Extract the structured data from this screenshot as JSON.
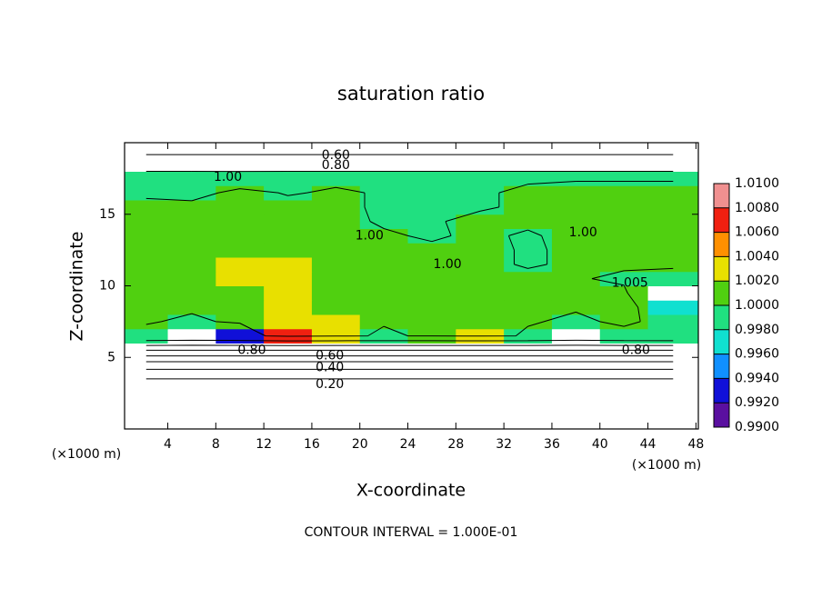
{
  "chart_data": {
    "type": "contourf",
    "title": "saturation ratio",
    "xlabel": "X-coordinate",
    "ylabel": "Z-coordinate",
    "xunit": "(×1000 m)",
    "yunit": "(×1000 m)",
    "footnote": "CONTOUR INTERVAL = 1.000E-01",
    "contour_interval": 0.1,
    "xlim": [
      0.4,
      48.2
    ],
    "ylim": [
      0,
      20
    ],
    "xticks": [
      4,
      8,
      12,
      16,
      20,
      24,
      28,
      32,
      36,
      40,
      44,
      48
    ],
    "yticks": [
      5,
      10,
      15
    ],
    "x_edges": [
      0.4,
      4,
      8,
      12,
      16,
      20,
      24,
      28,
      32,
      36,
      40,
      44,
      48.2
    ],
    "y_edges": [
      0,
      1,
      2,
      3,
      4,
      5,
      6,
      7,
      8,
      9,
      10,
      11,
      12,
      13,
      14,
      15,
      16,
      17,
      18,
      19,
      20
    ],
    "z": [
      [
        0.1,
        0.1,
        0.1,
        0.1,
        0.1,
        0.1,
        0.1,
        0.1,
        0.1,
        0.1,
        0.1,
        0.1
      ],
      [
        0.15,
        0.15,
        0.15,
        0.15,
        0.15,
        0.15,
        0.15,
        0.15,
        0.15,
        0.15,
        0.15,
        0.15
      ],
      [
        0.2,
        0.2,
        0.2,
        0.2,
        0.2,
        0.2,
        0.2,
        0.2,
        0.2,
        0.2,
        0.2,
        0.2
      ],
      [
        0.3,
        0.3,
        0.3,
        0.3,
        0.3,
        0.3,
        0.3,
        0.3,
        0.3,
        0.3,
        0.3,
        0.3
      ],
      [
        0.45,
        0.45,
        0.45,
        0.45,
        0.45,
        0.45,
        0.45,
        0.45,
        0.45,
        0.45,
        0.45,
        0.45
      ],
      [
        0.7,
        0.7,
        0.7,
        0.7,
        0.7,
        0.7,
        0.7,
        0.7,
        0.7,
        0.7,
        0.7,
        0.7
      ],
      [
        0.998,
        0.985,
        0.992,
        1.007,
        1.002,
        0.999,
        1.001,
        1.003,
        0.999,
        0.985,
        0.998,
        0.999
      ],
      [
        1.0005,
        0.999,
        1.001,
        1.003,
        1.002,
        1.0005,
        1.001,
        1.0015,
        1.0005,
        0.999,
        1.001,
        0.998
      ],
      [
        1.0008,
        1.0008,
        1.0015,
        1.002,
        1.0015,
        1.0005,
        1.0008,
        1.001,
        1.0008,
        1.0005,
        1.0012,
        0.997
      ],
      [
        1.0008,
        1.001,
        1.0018,
        1.0025,
        1.0018,
        1.0005,
        1.0005,
        1.0008,
        1.0005,
        1.0005,
        1.0012,
        0.985
      ],
      [
        1.0008,
        1.001,
        1.002,
        1.0025,
        1.0015,
        1.0003,
        1.0005,
        1.0008,
        1.0005,
        1.0005,
        0.999,
        0.998
      ],
      [
        1.0008,
        1.001,
        1.002,
        1.0022,
        1.0012,
        1.0003,
        1.0003,
        1.0005,
        0.9998,
        1.0003,
        1.0008,
        1.0008
      ],
      [
        1.0008,
        1.001,
        1.0018,
        1.0018,
        1.001,
        1.0002,
        1.0003,
        1.0005,
        0.9998,
        1.0003,
        1.0008,
        1.0008
      ],
      [
        1.0008,
        1.0008,
        1.0015,
        1.0015,
        1.0008,
        1.0002,
        0.9998,
        1.0003,
        0.9998,
        1.0005,
        1.0008,
        1.0008
      ],
      [
        1.0005,
        1.0008,
        1.0012,
        1.001,
        1.0005,
        0.9998,
        0.9998,
        1.0005,
        1.0003,
        1.0008,
        1.0008,
        1.0008
      ],
      [
        1.0003,
        1.0008,
        1.001,
        1.0008,
        1.0003,
        0.9998,
        0.9998,
        0.9998,
        1.0003,
        1.0008,
        1.0008,
        1.0008
      ],
      [
        0.9998,
        0.999,
        1.0008,
        0.9998,
        1.0003,
        0.9998,
        0.9998,
        0.9998,
        1.0003,
        1.0008,
        1.0008,
        1.0008
      ],
      [
        0.9995,
        0.999,
        0.998,
        0.9998,
        0.9995,
        0.9998,
        0.9998,
        0.9998,
        0.9998,
        0.9998,
        0.9998,
        0.9998
      ],
      [
        0.8,
        0.8,
        0.8,
        0.8,
        0.8,
        0.8,
        0.8,
        0.8,
        0.8,
        0.8,
        0.8,
        0.8
      ],
      [
        0.65,
        0.65,
        0.65,
        0.65,
        0.65,
        0.65,
        0.65,
        0.65,
        0.65,
        0.65,
        0.65,
        0.65
      ]
    ],
    "contour_labels": [
      {
        "text": "0.60",
        "x": 18,
        "y": 19.1
      },
      {
        "text": "0.80",
        "x": 18,
        "y": 18.4
      },
      {
        "text": "1.00",
        "x": 9,
        "y": 17.6
      },
      {
        "text": "1.00",
        "x": 20.8,
        "y": 13.5
      },
      {
        "text": "1.00",
        "x": 27.3,
        "y": 11.5
      },
      {
        "text": "1.00",
        "x": 38.6,
        "y": 13.7
      },
      {
        "text": "1.005",
        "x": 42.5,
        "y": 10.2
      },
      {
        "text": "0.80",
        "x": 11,
        "y": 5.5
      },
      {
        "text": "0.80",
        "x": 43,
        "y": 5.5
      },
      {
        "text": "0.60",
        "x": 17.5,
        "y": 5.1
      },
      {
        "text": "0.40",
        "x": 17.5,
        "y": 4.3
      },
      {
        "text": "0.20",
        "x": 17.5,
        "y": 3.1
      }
    ],
    "colorbar": {
      "ticks": [
        {
          "value": 0.99,
          "label": "0.9900"
        },
        {
          "value": 0.992,
          "label": "0.9920"
        },
        {
          "value": 0.994,
          "label": "0.9940"
        },
        {
          "value": 0.996,
          "label": "0.9960"
        },
        {
          "value": 0.998,
          "label": "0.9980"
        },
        {
          "value": 1.0,
          "label": "1.0000"
        },
        {
          "value": 1.002,
          "label": "1.0020"
        },
        {
          "value": 1.004,
          "label": "1.0040"
        },
        {
          "value": 1.006,
          "label": "1.0060"
        },
        {
          "value": 1.008,
          "label": "1.0080"
        },
        {
          "value": 1.01,
          "label": "1.0100"
        }
      ],
      "colors": [
        "#5a0fa0",
        "#1010d8",
        "#1090ff",
        "#10e0d0",
        "#20e080",
        "#50d010",
        "#e8e000",
        "#ff9000",
        "#f02010",
        "#f09090"
      ],
      "under": "#ffffff",
      "over": "#f09090"
    }
  }
}
